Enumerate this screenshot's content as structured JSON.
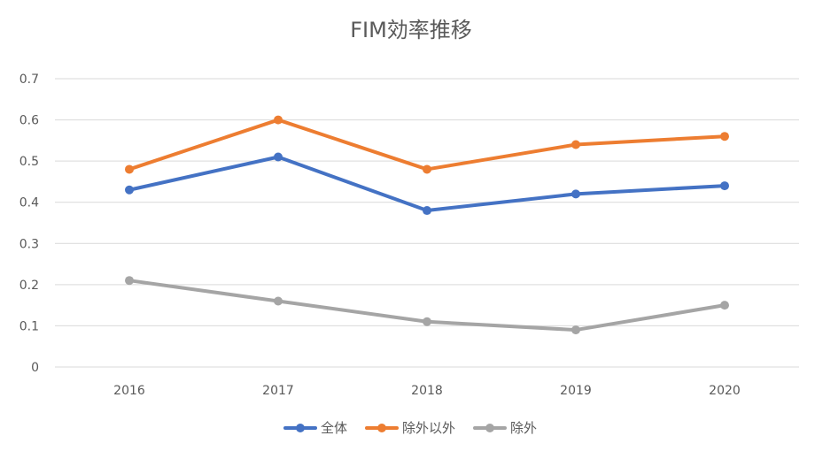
{
  "chart_data": {
    "type": "line",
    "title": "FIM効率推移",
    "categories": [
      "2016",
      "2017",
      "2018",
      "2019",
      "2020"
    ],
    "yticks": [
      "0",
      "0.1",
      "0.2",
      "0.3",
      "0.4",
      "0.5",
      "0.6",
      "0.7"
    ],
    "ylim": [
      0,
      0.7
    ],
    "grid": true,
    "legend_position": "bottom",
    "series": [
      {
        "name": "全体",
        "values": [
          0.43,
          0.51,
          0.38,
          0.42,
          0.44
        ],
        "color": "#4472C4"
      },
      {
        "name": "除外以外",
        "values": [
          0.48,
          0.6,
          0.48,
          0.54,
          0.56
        ],
        "color": "#ED7D31"
      },
      {
        "name": "除外",
        "values": [
          0.21,
          0.16,
          0.11,
          0.09,
          0.15
        ],
        "color": "#A5A5A5"
      }
    ]
  }
}
